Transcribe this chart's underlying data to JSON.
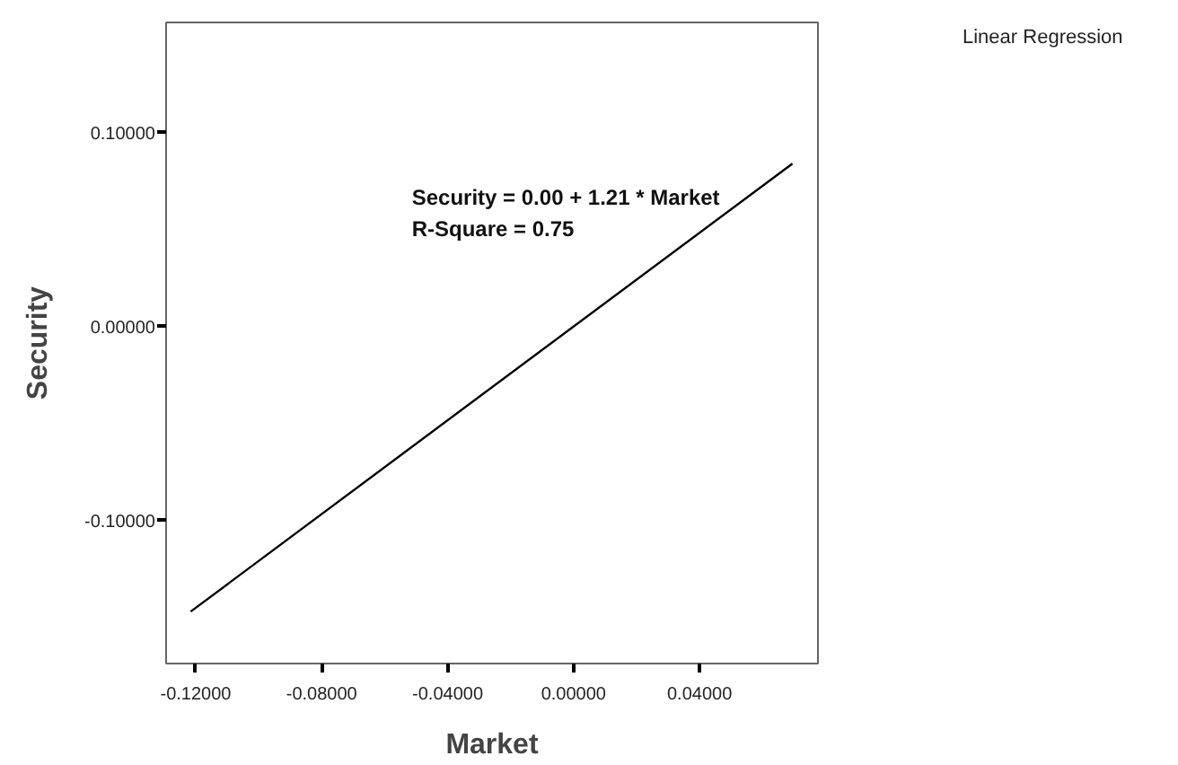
{
  "chart_data": {
    "type": "line",
    "xlabel": "Market",
    "ylabel": "Security",
    "x": [
      -0.1216,
      0.0695
    ],
    "series": [
      {
        "color": "#000000",
        "values": [
          -0.147,
          0.084
        ]
      }
    ],
    "xlim": [
      -0.1294,
      0.0776
    ],
    "ylim": [
      -0.1738,
      0.1568
    ],
    "xticks": [
      {
        "value": -0.12,
        "label": "-0.12000"
      },
      {
        "value": -0.08,
        "label": "-0.08000"
      },
      {
        "value": -0.04,
        "label": "-0.04000"
      },
      {
        "value": 0,
        "label": "0.00000"
      },
      {
        "value": 0.04,
        "label": "0.04000"
      }
    ],
    "yticks": [
      {
        "value": -0.1,
        "label": "-0.10000"
      },
      {
        "value": 0,
        "label": "0.00000"
      },
      {
        "value": 0.1,
        "label": "0.10000"
      }
    ],
    "grid": false,
    "marker": "none",
    "line_style": "solid",
    "annotations": [
      "Security = 0.00 + 1.21 * Market",
      "R-Square = 0.75",
      "Linear Regression"
    ]
  }
}
